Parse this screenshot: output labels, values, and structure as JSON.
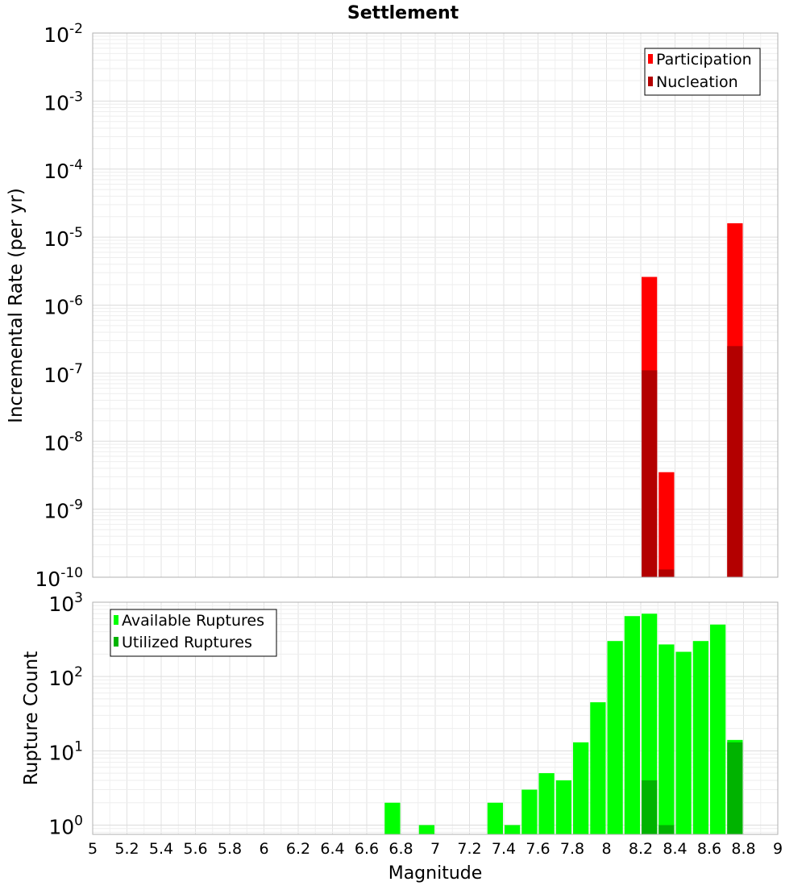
{
  "chart_data": [
    {
      "type": "bar",
      "title": "Settlement",
      "ylabel": "Incremental Rate (per yr)",
      "xlabel": "",
      "xlim": [
        5,
        9
      ],
      "ylim": [
        1e-10,
        0.01
      ],
      "y_scale": "log",
      "bar_width": 0.1,
      "legend_position": "top-right",
      "grid": true,
      "series": [
        {
          "name": "Participation",
          "color": "#ff0000",
          "points": [
            {
              "x": 8.25,
              "y": 2.6e-06
            },
            {
              "x": 8.35,
              "y": 3.5e-09
            },
            {
              "x": 8.75,
              "y": 1.6e-05
            }
          ]
        },
        {
          "name": "Nucleation",
          "color": "#b30000",
          "points": [
            {
              "x": 8.25,
              "y": 1.1e-07
            },
            {
              "x": 8.35,
              "y": 1.3e-10
            },
            {
              "x": 8.75,
              "y": 2.5e-07
            }
          ]
        }
      ],
      "y_ticks": [
        {
          "base": "10",
          "exp": "-10",
          "value": 1e-10
        },
        {
          "base": "10",
          "exp": "-9",
          "value": 1e-09
        },
        {
          "base": "10",
          "exp": "-8",
          "value": 1e-08
        },
        {
          "base": "10",
          "exp": "-7",
          "value": 1e-07
        },
        {
          "base": "10",
          "exp": "-6",
          "value": 1e-06
        },
        {
          "base": "10",
          "exp": "-5",
          "value": 1e-05
        },
        {
          "base": "10",
          "exp": "-4",
          "value": 0.0001
        },
        {
          "base": "10",
          "exp": "-3",
          "value": 0.001
        },
        {
          "base": "10",
          "exp": "-2",
          "value": 0.01
        }
      ]
    },
    {
      "type": "bar",
      "title": "",
      "ylabel": "Rupture Count",
      "xlabel": "Magnitude",
      "xlim": [
        5,
        9
      ],
      "ylim": [
        0.75,
        1000
      ],
      "y_scale": "log",
      "bar_width": 0.1,
      "legend_position": "top-left",
      "grid": true,
      "series": [
        {
          "name": "Available Ruptures",
          "color": "#00ff00",
          "points": [
            {
              "x": 6.75,
              "y": 2
            },
            {
              "x": 6.95,
              "y": 1
            },
            {
              "x": 7.35,
              "y": 2
            },
            {
              "x": 7.45,
              "y": 1
            },
            {
              "x": 7.55,
              "y": 3
            },
            {
              "x": 7.65,
              "y": 5
            },
            {
              "x": 7.75,
              "y": 4
            },
            {
              "x": 7.85,
              "y": 13
            },
            {
              "x": 7.95,
              "y": 45
            },
            {
              "x": 8.05,
              "y": 300
            },
            {
              "x": 8.15,
              "y": 650
            },
            {
              "x": 8.25,
              "y": 700
            },
            {
              "x": 8.35,
              "y": 270
            },
            {
              "x": 8.45,
              "y": 215
            },
            {
              "x": 8.55,
              "y": 300
            },
            {
              "x": 8.65,
              "y": 500
            },
            {
              "x": 8.75,
              "y": 14
            }
          ]
        },
        {
          "name": "Utilized Ruptures",
          "color": "#00b300",
          "points": [
            {
              "x": 8.25,
              "y": 4
            },
            {
              "x": 8.35,
              "y": 1
            },
            {
              "x": 8.75,
              "y": 13
            }
          ]
        }
      ],
      "y_ticks": [
        {
          "base": "10",
          "exp": "0",
          "value": 1
        },
        {
          "base": "10",
          "exp": "1",
          "value": 10
        },
        {
          "base": "10",
          "exp": "2",
          "value": 100
        },
        {
          "base": "10",
          "exp": "3",
          "value": 1000
        }
      ],
      "x_ticks": [
        "5",
        "5.2",
        "5.4",
        "5.6",
        "5.8",
        "6",
        "6.2",
        "6.4",
        "6.6",
        "6.8",
        "7",
        "7.2",
        "7.4",
        "7.6",
        "7.8",
        "8",
        "8.2",
        "8.4",
        "8.6",
        "8.8",
        "9"
      ]
    }
  ]
}
